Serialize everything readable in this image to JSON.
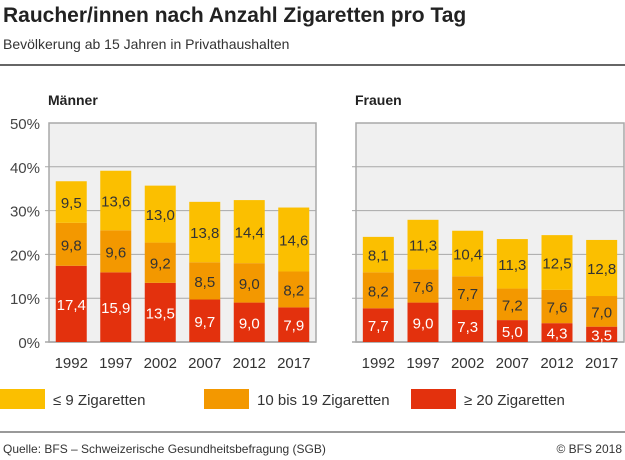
{
  "title": "Raucher/innen nach Anzahl Zigaretten pro Tag",
  "subtitle": "Bevölkerung ab 15 Jahren in Privathaushalten",
  "source": "Quelle: BFS – Schweizerische Gesundheitsbefragung (SGB)",
  "copyright": "© BFS 2018",
  "colors": {
    "le9": "#fbbf00",
    "10to19": "#f39800",
    "ge20": "#e3310d",
    "plot_bg": "#f0f0f0",
    "grid": "#a8a8a8"
  },
  "chart_data": [
    {
      "type": "bar",
      "stacked": true,
      "title": "Männer",
      "categories": [
        "1992",
        "1997",
        "2002",
        "2007",
        "2012",
        "2017"
      ],
      "yticks": [
        "0%",
        "10%",
        "20%",
        "30%",
        "40%",
        "50%"
      ],
      "ylim": [
        0,
        50
      ],
      "grid": true,
      "legend": "bottom",
      "series": [
        {
          "name": "≥ 20 Zigaretten",
          "values": [
            17.4,
            15.9,
            13.5,
            9.7,
            9.0,
            7.9
          ],
          "labels": [
            "17,4",
            "15,9",
            "13,5",
            "9,7",
            "9,0",
            "7,9"
          ]
        },
        {
          "name": "10 bis 19 Zigaretten",
          "values": [
            9.8,
            9.6,
            9.2,
            8.5,
            9.0,
            8.2
          ],
          "labels": [
            "9,8",
            "9,6",
            "9,2",
            "8,5",
            "9,0",
            "8,2"
          ]
        },
        {
          "name": "≤ 9 Zigaretten",
          "values": [
            9.5,
            13.6,
            13.0,
            13.8,
            14.4,
            14.6
          ],
          "labels": [
            "9,5",
            "13,6",
            "13,0",
            "13,8",
            "14,4",
            "14,6"
          ]
        }
      ]
    },
    {
      "type": "bar",
      "stacked": true,
      "title": "Frauen",
      "categories": [
        "1992",
        "1997",
        "2002",
        "2007",
        "2012",
        "2017"
      ],
      "ylim": [
        0,
        50
      ],
      "grid": true,
      "series": [
        {
          "name": "≥ 20 Zigaretten",
          "values": [
            7.7,
            9.0,
            7.3,
            5.0,
            4.3,
            3.5
          ],
          "labels": [
            "7,7",
            "9,0",
            "7,3",
            "5,0",
            "4,3",
            "3,5"
          ]
        },
        {
          "name": "10 bis 19 Zigaretten",
          "values": [
            8.2,
            7.6,
            7.7,
            7.2,
            7.6,
            7.0
          ],
          "labels": [
            "8,2",
            "7,6",
            "7,7",
            "7,2",
            "7,6",
            "7,0"
          ]
        },
        {
          "name": "≤ 9 Zigaretten",
          "values": [
            8.1,
            11.3,
            10.4,
            11.3,
            12.5,
            12.8
          ],
          "labels": [
            "8,1",
            "11,3",
            "10,4",
            "11,3",
            "12,5",
            "12,8"
          ]
        }
      ]
    }
  ],
  "legend": [
    {
      "label": "≤ 9 Zigaretten",
      "color": "#fbbf00"
    },
    {
      "label": "10 bis 19 Zigaretten",
      "color": "#f39800"
    },
    {
      "label": "≥ 20 Zigaretten",
      "color": "#e3310d"
    }
  ]
}
